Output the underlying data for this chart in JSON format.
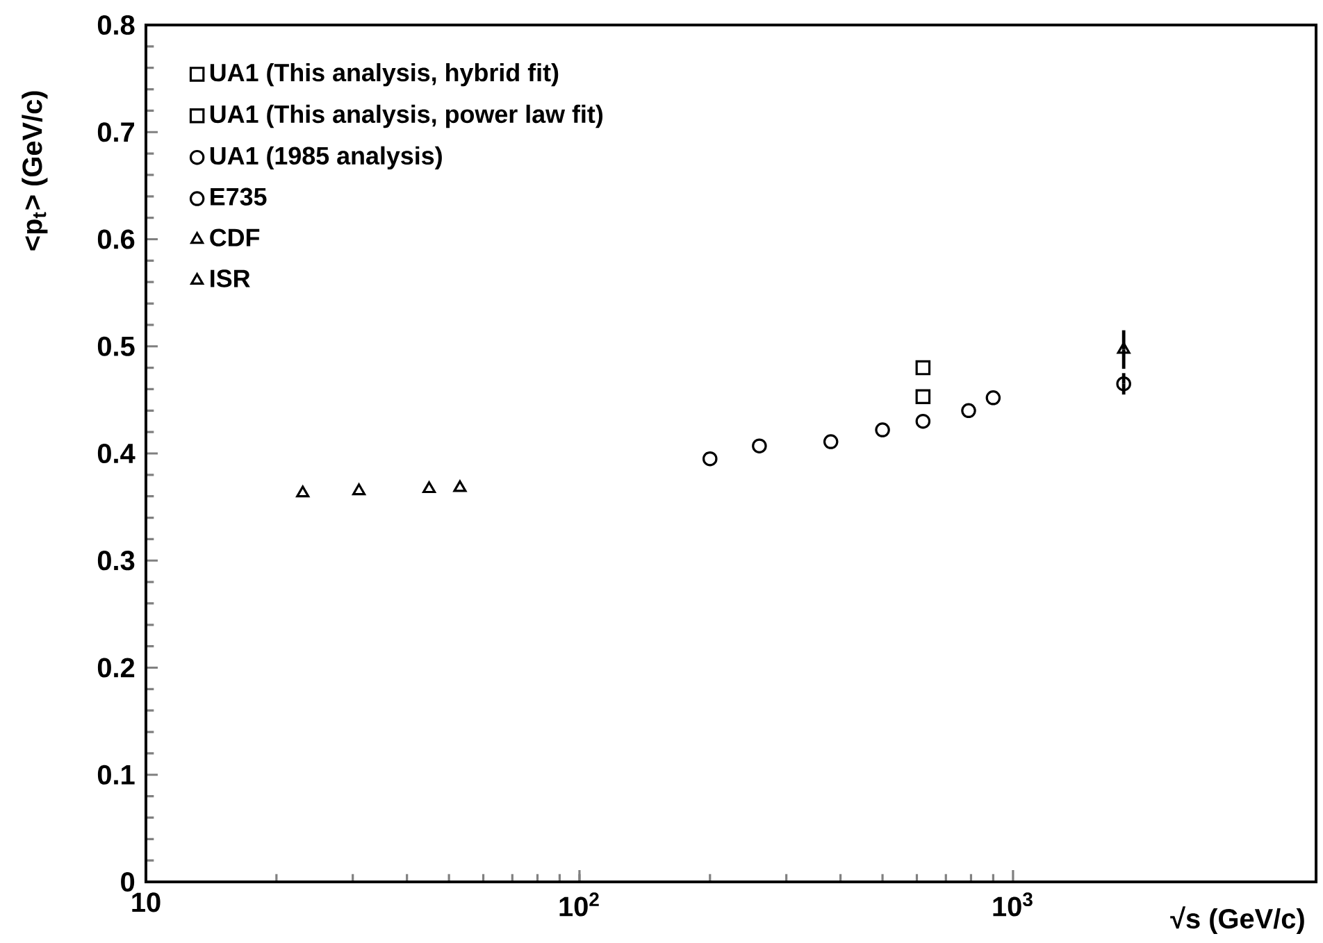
{
  "chart_data": {
    "type": "scatter",
    "xlabel": "√s (GeV/c)",
    "ylabel": "<p$_{t}$> (GeV/c)",
    "log": "x",
    "xlim": [
      10,
      5000
    ],
    "ylim": [
      0,
      0.8
    ],
    "xticks": [
      10,
      {
        "value": 100,
        "label": "10$^{2}$"
      },
      {
        "value": 1000,
        "label": "10$^{3}$"
      }
    ],
    "yticks": [
      0,
      0.1,
      0.2,
      0.3,
      0.4,
      0.5,
      0.6,
      0.7,
      0.8
    ],
    "grid": false,
    "legend": "top left",
    "series": [
      {
        "name": "UA1  (This analysis, hybrid fit)",
        "color": "#000000",
        "marker": "square",
        "x": [
          620
        ],
        "values": [
          0.48
        ]
      },
      {
        "name": "UA1  (This analysis, power law fit)",
        "color": "#000000",
        "marker": "square",
        "x": [
          620
        ],
        "values": [
          0.453
        ]
      },
      {
        "name": "UA1   (1985 analysis)",
        "color": "#000000",
        "marker": "circle",
        "x": [
          200,
          260,
          380,
          500,
          620,
          790,
          900
        ],
        "values": [
          0.395,
          0.407,
          0.411,
          0.422,
          0.43,
          0.44,
          0.452
        ]
      },
      {
        "name": "E735",
        "color": "#000000",
        "marker": "circle",
        "x": [
          1800
        ],
        "values": [
          0.465
        ],
        "errors": [
          0.01
        ]
      },
      {
        "name": "CDF",
        "color": "#000000",
        "marker": "triangle",
        "x": [
          1800
        ],
        "values": [
          0.497
        ],
        "errors": [
          0.018
        ]
      },
      {
        "name": "ISR",
        "color": "#000000",
        "marker": "triangle",
        "x": [
          23,
          31,
          45,
          53
        ],
        "values": [
          0.363,
          0.365,
          0.367,
          0.368
        ]
      }
    ]
  }
}
